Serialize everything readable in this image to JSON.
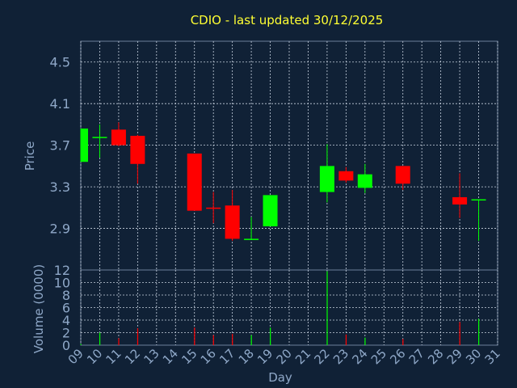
{
  "chart_data": [
    {
      "type": "candlestick",
      "title": "CDIO - last updated 30/12/2025",
      "xlabel": "Day",
      "ylabel": "Price",
      "ylim": [
        2.5,
        4.7
      ],
      "yticks": [
        "2.9",
        "3.3",
        "3.7",
        "4.1",
        "4.5"
      ],
      "grid": true,
      "colors": {
        "up": "#00ff00",
        "down": "#ff0000",
        "background": "#102136",
        "axis_text": "#8fa8c8",
        "title": "#ffff33"
      },
      "x_labels": [
        "09",
        "10",
        "11",
        "12",
        "13",
        "14",
        "15",
        "16",
        "17",
        "18",
        "19",
        "20",
        "21",
        "22",
        "23",
        "24",
        "25",
        "26",
        "27",
        "28",
        "29",
        "30",
        "31"
      ],
      "candles": [
        {
          "day": "09",
          "open": 3.54,
          "high": 3.86,
          "low": 3.54,
          "close": 3.86
        },
        {
          "day": "10",
          "open": 3.77,
          "high": 3.9,
          "low": 3.58,
          "close": 3.78
        },
        {
          "day": "11",
          "open": 3.85,
          "high": 3.92,
          "low": 3.69,
          "close": 3.7
        },
        {
          "day": "12",
          "open": 3.79,
          "high": 3.8,
          "low": 3.33,
          "close": 3.52
        },
        {
          "day": "15",
          "open": 3.62,
          "high": 3.62,
          "low": 3.07,
          "close": 3.07
        },
        {
          "day": "16",
          "open": 3.1,
          "high": 3.25,
          "low": 2.95,
          "close": 3.09
        },
        {
          "day": "17",
          "open": 3.12,
          "high": 3.27,
          "low": 2.78,
          "close": 2.8
        },
        {
          "day": "18",
          "open": 2.79,
          "high": 3.01,
          "low": 2.79,
          "close": 2.8
        },
        {
          "day": "19",
          "open": 2.92,
          "high": 3.22,
          "low": 2.92,
          "close": 3.22
        },
        {
          "day": "22",
          "open": 3.25,
          "high": 3.71,
          "low": 3.15,
          "close": 3.5
        },
        {
          "day": "23",
          "open": 3.45,
          "high": 3.49,
          "low": 3.34,
          "close": 3.36
        },
        {
          "day": "24",
          "open": 3.29,
          "high": 3.52,
          "low": 3.24,
          "close": 3.42
        },
        {
          "day": "26",
          "open": 3.5,
          "high": 3.5,
          "low": 3.27,
          "close": 3.33
        },
        {
          "day": "29",
          "open": 3.2,
          "high": 3.43,
          "low": 3.0,
          "close": 3.13
        },
        {
          "day": "30",
          "open": 3.17,
          "high": 3.18,
          "low": 2.78,
          "close": 3.18
        }
      ]
    },
    {
      "type": "bar",
      "ylabel": "Volume (0000)",
      "ylim": [
        0,
        12
      ],
      "yticks": [
        "0",
        "2",
        "4",
        "6",
        "8",
        "10",
        "12"
      ],
      "grid": true,
      "bars": [
        {
          "day": "09",
          "value": 0.2,
          "dir": "up"
        },
        {
          "day": "10",
          "value": 2.0,
          "dir": "up"
        },
        {
          "day": "11",
          "value": 1.1,
          "dir": "down"
        },
        {
          "day": "12",
          "value": 2.7,
          "dir": "down"
        },
        {
          "day": "15",
          "value": 2.8,
          "dir": "down"
        },
        {
          "day": "16",
          "value": 1.6,
          "dir": "down"
        },
        {
          "day": "17",
          "value": 1.8,
          "dir": "down"
        },
        {
          "day": "18",
          "value": 1.6,
          "dir": "up"
        },
        {
          "day": "19",
          "value": 2.8,
          "dir": "up"
        },
        {
          "day": "22",
          "value": 11.8,
          "dir": "up"
        },
        {
          "day": "23",
          "value": 1.7,
          "dir": "down"
        },
        {
          "day": "24",
          "value": 1.2,
          "dir": "up"
        },
        {
          "day": "26",
          "value": 1.0,
          "dir": "down"
        },
        {
          "day": "29",
          "value": 3.7,
          "dir": "down"
        },
        {
          "day": "30",
          "value": 4.2,
          "dir": "up"
        }
      ]
    }
  ]
}
